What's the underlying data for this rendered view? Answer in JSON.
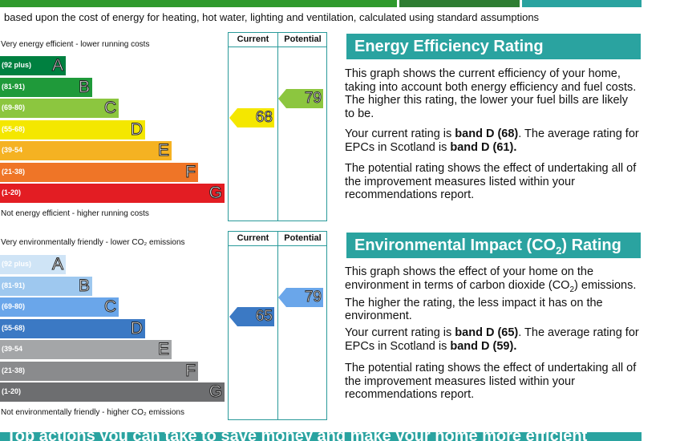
{
  "header": {
    "subtitle": "based upon the cost of energy for heating, hot water, lighting and ventilation, calculated using standard assumptions"
  },
  "energy_chart": {
    "col_current": "Current",
    "col_potential": "Potential",
    "top_label": "Very energy efficient - lower running costs",
    "bottom_label": "Not energy efficient - higher running costs",
    "bands": [
      {
        "range": "(92 plus)",
        "letter": "A",
        "color": "#008040"
      },
      {
        "range": "(81-91)",
        "letter": "B",
        "color": "#1f9a3a"
      },
      {
        "range": "(69-80)",
        "letter": "C",
        "color": "#8cc63f"
      },
      {
        "range": "(55-68)",
        "letter": "D",
        "color": "#f4e700"
      },
      {
        "range": "(39-54",
        "letter": "E",
        "color": "#f5b222"
      },
      {
        "range": "(21-38)",
        "letter": "F",
        "color": "#ef7527"
      },
      {
        "range": "(1-20)",
        "letter": "G",
        "color": "#e31d23"
      }
    ],
    "current": {
      "value": "68",
      "band": 3,
      "color": "#f4e700"
    },
    "potential": {
      "value": "79",
      "band": 2,
      "color": "#8cc63f"
    }
  },
  "environment_chart": {
    "col_current": "Current",
    "col_potential": "Potential",
    "top_label": "Very environmentally friendly - lower CO₂ emissions",
    "bottom_label": "Not environmentally friendly - higher CO₂ emissions",
    "bands": [
      {
        "range": "(92 plus)",
        "letter": "A",
        "color": "#cfe4f6"
      },
      {
        "range": "(81-91)",
        "letter": "B",
        "color": "#9ec8ef"
      },
      {
        "range": "(69-80)",
        "letter": "C",
        "color": "#6aa6ea"
      },
      {
        "range": "(55-68)",
        "letter": "D",
        "color": "#3b79c4"
      },
      {
        "range": "(39-54",
        "letter": "E",
        "color": "#a4a6a8"
      },
      {
        "range": "(21-38)",
        "letter": "F",
        "color": "#8a8b8d"
      },
      {
        "range": "(1-20)",
        "letter": "G",
        "color": "#6d6e70"
      }
    ],
    "current": {
      "value": "65",
      "band": 3,
      "color": "#3b79c4"
    },
    "potential": {
      "value": "79",
      "band": 2,
      "color": "#6aa6ea"
    }
  },
  "energy_panel": {
    "title": "Energy Efficiency Rating",
    "p1": "This graph shows the current efficiency of your home, taking into account both energy efficiency and fuel costs. The higher this rating, the lower your fuel bills are likely to be.",
    "p2_a": "Your current rating is ",
    "p2_b": "band D (68)",
    "p2_c": ". The average rating for EPCs in Scotland is ",
    "p2_d": "band D (61).",
    "p3": "The potential rating shows the effect of undertaking all of the improvement measures listed within your recommendations report."
  },
  "environment_panel": {
    "title_a": "Environmental Impact (CO",
    "title_sub": "2",
    "title_b": ") Rating",
    "p1_a": "This graph shows the effect of your home on the environment in terms of carbon dioxide (CO",
    "p1_sub": "2",
    "p1_b": ") emissions. The higher the rating, the less impact it has on the environment.",
    "p2_a": "Your current rating is ",
    "p2_b": "band D (65)",
    "p2_c": ". The average rating for EPCs in Scotland is ",
    "p2_d": "band D (59).",
    "p3": "The potential rating shows the effect of undertaking all of the improvement measures listed within your recommendations report."
  },
  "footer": {
    "heading": "Top actions you can take to save money and make your home more efficient"
  }
}
